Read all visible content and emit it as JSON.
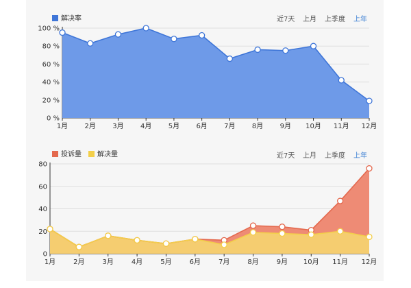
{
  "charts": [
    {
      "type": "area",
      "legend": [
        {
          "label": "解决率",
          "color": "#3f76d8"
        }
      ],
      "periods": [
        "近7天",
        "上月",
        "上季度",
        "上年"
      ],
      "active_period": "上年",
      "y_ticks": [
        "0 %",
        "20 %",
        "40 %",
        "60 %",
        "80 %",
        "100 %"
      ],
      "categories": [
        "1月",
        "2月",
        "3月",
        "4月",
        "5月",
        "6月",
        "7月",
        "8月",
        "9月",
        "10月",
        "11月",
        "12月"
      ]
    },
    {
      "type": "area",
      "legend": [
        {
          "label": "投诉量",
          "color": "#e4694e"
        },
        {
          "label": "解决量",
          "color": "#f3cf4a"
        }
      ],
      "periods": [
        "近7天",
        "上月",
        "上季度",
        "上年"
      ],
      "active_period": "上年",
      "y_ticks": [
        "0",
        "20",
        "40",
        "60",
        "80"
      ],
      "categories": [
        "1月",
        "2月",
        "3月",
        "4月",
        "5月",
        "6月",
        "7月",
        "8月",
        "9月",
        "10月",
        "11月",
        "12月"
      ]
    }
  ],
  "chart_data": [
    {
      "type": "area",
      "categories": [
        "1月",
        "2月",
        "3月",
        "4月",
        "5月",
        "6月",
        "7月",
        "8月",
        "9月",
        "10月",
        "11月",
        "12月"
      ],
      "series": [
        {
          "name": "解决率",
          "values": [
            95,
            83,
            93,
            100,
            88,
            92,
            66,
            76,
            75,
            80,
            42,
            19
          ],
          "color": "#3f76d8",
          "fill": "#6e9ae8"
        }
      ],
      "ylim": [
        0,
        100
      ],
      "yunit": "%",
      "grid": true,
      "legend_position": "top-left"
    },
    {
      "type": "area",
      "categories": [
        "1月",
        "2月",
        "3月",
        "4月",
        "5月",
        "6月",
        "7月",
        "8月",
        "9月",
        "10月",
        "11月",
        "12月"
      ],
      "series": [
        {
          "name": "投诉量",
          "values": [
            22,
            6,
            16,
            12,
            9,
            13,
            12,
            25,
            24,
            21,
            47,
            76
          ],
          "color": "#e4694e",
          "fill": "#ee8b75"
        },
        {
          "name": "解决量",
          "values": [
            22,
            6,
            16,
            12,
            9,
            13,
            8,
            19,
            18,
            17,
            20,
            15
          ],
          "color": "#f3cf4a",
          "fill": "#f5cd70"
        }
      ],
      "ylim": [
        0,
        80
      ],
      "grid": true,
      "legend_position": "top-left"
    }
  ]
}
